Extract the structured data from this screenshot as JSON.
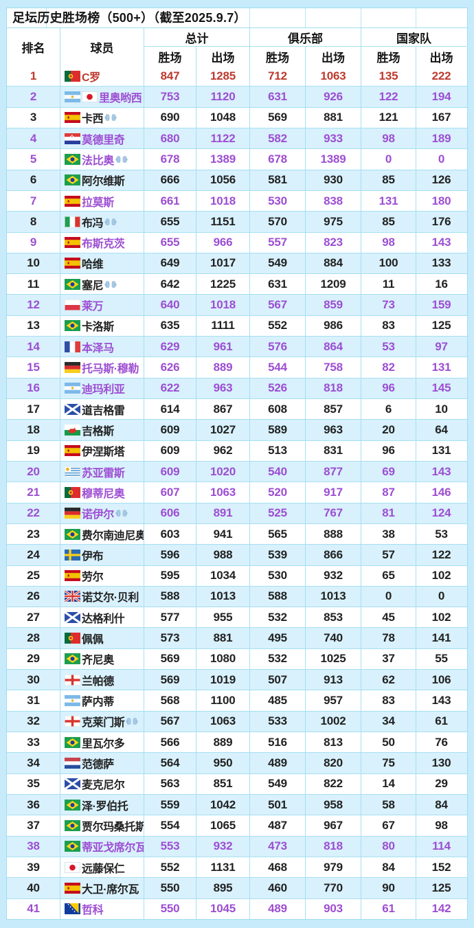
{
  "title": "足坛历史胜场榜（500+）（截至2025.9.7）",
  "header": {
    "rank": "排名",
    "player": "球员",
    "groups": [
      "总计",
      "俱乐部",
      "国家队"
    ],
    "wins": "胜场",
    "apps": "出场"
  },
  "icons": {
    "goalkeeper": "gloves-icon"
  },
  "colors": {
    "page_bg": "#c7ebfa",
    "row_white": "#ffffff",
    "row_blue": "#d8f1fd",
    "border": "#a6dff2",
    "status": {
      "top": "#bd392e",
      "active": "#9d4ed2",
      "retired": "#222222"
    }
  },
  "stat_keys": [
    "total-wins",
    "total-apps",
    "club-wins",
    "club-apps",
    "nt-wins",
    "nt-apps"
  ],
  "chart_data": {
    "type": "table",
    "title": "足坛历史胜场榜（500+）（截至2025.9.7）",
    "columns": [
      "排名",
      "球员",
      "总计胜场",
      "总计出场",
      "俱乐部胜场",
      "俱乐部出场",
      "国家队胜场",
      "国家队出场"
    ],
    "note_colors": "red=rank1, purple=active players, black=retired; goalkeeper marked with gloves icon"
  },
  "rows": [
    {
      "rank": 1,
      "name": "C罗",
      "flags": [
        "portugal"
      ],
      "gk": false,
      "status": "top",
      "stats": [
        847,
        1285,
        712,
        1063,
        135,
        222
      ]
    },
    {
      "rank": 2,
      "name": "里奥哟西",
      "flags": [
        "argentina",
        "japan"
      ],
      "gk": false,
      "status": "active",
      "stats": [
        753,
        1120,
        631,
        926,
        122,
        194
      ]
    },
    {
      "rank": 3,
      "name": "卡西",
      "flags": [
        "spain"
      ],
      "gk": true,
      "status": "retired",
      "stats": [
        690,
        1048,
        569,
        881,
        121,
        167
      ]
    },
    {
      "rank": 4,
      "name": "莫德里奇",
      "flags": [
        "croatia"
      ],
      "gk": false,
      "status": "active",
      "stats": [
        680,
        1122,
        582,
        933,
        98,
        189
      ]
    },
    {
      "rank": 5,
      "name": "法比奥",
      "flags": [
        "brazil"
      ],
      "gk": true,
      "status": "active",
      "stats": [
        678,
        1389,
        678,
        1389,
        0,
        0
      ]
    },
    {
      "rank": 6,
      "name": "阿尔维斯",
      "flags": [
        "brazil"
      ],
      "gk": false,
      "status": "retired",
      "stats": [
        666,
        1056,
        581,
        930,
        85,
        126
      ]
    },
    {
      "rank": 7,
      "name": "拉莫斯",
      "flags": [
        "spain"
      ],
      "gk": false,
      "status": "active",
      "stats": [
        661,
        1018,
        530,
        838,
        131,
        180
      ]
    },
    {
      "rank": 8,
      "name": "布冯",
      "flags": [
        "italy"
      ],
      "gk": true,
      "status": "retired",
      "stats": [
        655,
        1151,
        570,
        975,
        85,
        176
      ]
    },
    {
      "rank": 9,
      "name": "布斯克茨",
      "flags": [
        "spain"
      ],
      "gk": false,
      "status": "active",
      "stats": [
        655,
        966,
        557,
        823,
        98,
        143
      ]
    },
    {
      "rank": 10,
      "name": "哈维",
      "flags": [
        "spain"
      ],
      "gk": false,
      "status": "retired",
      "stats": [
        649,
        1017,
        549,
        884,
        100,
        133
      ]
    },
    {
      "rank": 11,
      "name": "塞尼",
      "flags": [
        "brazil"
      ],
      "gk": true,
      "status": "retired",
      "stats": [
        642,
        1225,
        631,
        1209,
        11,
        16
      ]
    },
    {
      "rank": 12,
      "name": "莱万",
      "flags": [
        "poland"
      ],
      "gk": false,
      "status": "active",
      "stats": [
        640,
        1018,
        567,
        859,
        73,
        159
      ]
    },
    {
      "rank": 13,
      "name": "卡洛斯",
      "flags": [
        "brazil"
      ],
      "gk": false,
      "status": "retired",
      "stats": [
        635,
        1111,
        552,
        986,
        83,
        125
      ]
    },
    {
      "rank": 14,
      "name": "本泽马",
      "flags": [
        "france"
      ],
      "gk": false,
      "status": "active",
      "stats": [
        629,
        961,
        576,
        864,
        53,
        97
      ]
    },
    {
      "rank": 15,
      "name": "托马斯·穆勒",
      "flags": [
        "germany"
      ],
      "gk": false,
      "status": "active",
      "stats": [
        626,
        889,
        544,
        758,
        82,
        131
      ]
    },
    {
      "rank": 16,
      "name": "迪玛利亚",
      "flags": [
        "argentina"
      ],
      "gk": false,
      "status": "active",
      "stats": [
        622,
        963,
        526,
        818,
        96,
        145
      ]
    },
    {
      "rank": 17,
      "name": "道吉格雷",
      "flags": [
        "scotland"
      ],
      "gk": false,
      "status": "retired",
      "stats": [
        614,
        867,
        608,
        857,
        6,
        10
      ]
    },
    {
      "rank": 18,
      "name": "吉格斯",
      "flags": [
        "wales"
      ],
      "gk": false,
      "status": "retired",
      "stats": [
        609,
        1027,
        589,
        963,
        20,
        64
      ]
    },
    {
      "rank": 19,
      "name": "伊涅斯塔",
      "flags": [
        "spain"
      ],
      "gk": false,
      "status": "retired",
      "stats": [
        609,
        962,
        513,
        831,
        96,
        131
      ]
    },
    {
      "rank": 20,
      "name": "苏亚雷斯",
      "flags": [
        "uruguay"
      ],
      "gk": false,
      "status": "active",
      "stats": [
        609,
        1020,
        540,
        877,
        69,
        143
      ]
    },
    {
      "rank": 21,
      "name": "穆蒂尼奥",
      "flags": [
        "portugal"
      ],
      "gk": false,
      "status": "active",
      "stats": [
        607,
        1063,
        520,
        917,
        87,
        146
      ]
    },
    {
      "rank": 22,
      "name": "诺伊尔",
      "flags": [
        "germany"
      ],
      "gk": true,
      "status": "active",
      "stats": [
        606,
        891,
        525,
        767,
        81,
        124
      ]
    },
    {
      "rank": 23,
      "name": "费尔南迪尼奥",
      "flags": [
        "brazil"
      ],
      "gk": false,
      "status": "retired",
      "stats": [
        603,
        941,
        565,
        888,
        38,
        53
      ]
    },
    {
      "rank": 24,
      "name": "伊布",
      "flags": [
        "sweden"
      ],
      "gk": false,
      "status": "retired",
      "stats": [
        596,
        988,
        539,
        866,
        57,
        122
      ]
    },
    {
      "rank": 25,
      "name": "劳尔",
      "flags": [
        "spain"
      ],
      "gk": false,
      "status": "retired",
      "stats": [
        595,
        1034,
        530,
        932,
        65,
        102
      ]
    },
    {
      "rank": 26,
      "name": "诺艾尔·贝利",
      "flags": [
        "uk"
      ],
      "gk": false,
      "status": "retired",
      "stats": [
        588,
        1013,
        588,
        1013,
        0,
        0
      ]
    },
    {
      "rank": 27,
      "name": "达格利什",
      "flags": [
        "scotland"
      ],
      "gk": false,
      "status": "retired",
      "stats": [
        577,
        955,
        532,
        853,
        45,
        102
      ]
    },
    {
      "rank": 28,
      "name": "佩佩",
      "flags": [
        "portugal"
      ],
      "gk": false,
      "status": "retired",
      "stats": [
        573,
        881,
        495,
        740,
        78,
        141
      ]
    },
    {
      "rank": 29,
      "name": "齐尼奥",
      "flags": [
        "brazil"
      ],
      "gk": false,
      "status": "retired",
      "stats": [
        569,
        1080,
        532,
        1025,
        37,
        55
      ]
    },
    {
      "rank": 30,
      "name": "兰帕德",
      "flags": [
        "england"
      ],
      "gk": false,
      "status": "retired",
      "stats": [
        569,
        1019,
        507,
        913,
        62,
        106
      ]
    },
    {
      "rank": 31,
      "name": "萨内蒂",
      "flags": [
        "argentina"
      ],
      "gk": false,
      "status": "retired",
      "stats": [
        568,
        1100,
        485,
        957,
        83,
        143
      ]
    },
    {
      "rank": 32,
      "name": "克莱门斯",
      "flags": [
        "england"
      ],
      "gk": true,
      "status": "retired",
      "stats": [
        567,
        1063,
        533,
        1002,
        34,
        61
      ]
    },
    {
      "rank": 33,
      "name": "里瓦尔多",
      "flags": [
        "brazil"
      ],
      "gk": false,
      "status": "retired",
      "stats": [
        566,
        889,
        516,
        813,
        50,
        76
      ]
    },
    {
      "rank": 34,
      "name": "范德萨",
      "flags": [
        "netherlands"
      ],
      "gk": false,
      "status": "retired",
      "stats": [
        564,
        950,
        489,
        820,
        75,
        130
      ]
    },
    {
      "rank": 35,
      "name": "麦克尼尔",
      "flags": [
        "scotland"
      ],
      "gk": false,
      "status": "retired",
      "stats": [
        563,
        851,
        549,
        822,
        14,
        29
      ]
    },
    {
      "rank": 36,
      "name": "泽·罗伯托",
      "flags": [
        "brazil"
      ],
      "gk": false,
      "status": "retired",
      "stats": [
        559,
        1042,
        501,
        958,
        58,
        84
      ]
    },
    {
      "rank": 37,
      "name": "贾尔玛桑托斯",
      "flags": [
        "brazil"
      ],
      "gk": false,
      "status": "retired",
      "stats": [
        554,
        1065,
        487,
        967,
        67,
        98
      ]
    },
    {
      "rank": 38,
      "name": "蒂亚戈席尔瓦",
      "flags": [
        "brazil"
      ],
      "gk": false,
      "status": "active",
      "stats": [
        553,
        932,
        473,
        818,
        80,
        114
      ]
    },
    {
      "rank": 39,
      "name": "远藤保仁",
      "flags": [
        "japan"
      ],
      "gk": false,
      "status": "retired",
      "stats": [
        552,
        1131,
        468,
        979,
        84,
        152
      ]
    },
    {
      "rank": 40,
      "name": "大卫·席尔瓦",
      "flags": [
        "spain"
      ],
      "gk": false,
      "status": "retired",
      "stats": [
        550,
        895,
        460,
        770,
        90,
        125
      ]
    },
    {
      "rank": 41,
      "name": "哲科",
      "flags": [
        "bosnia"
      ],
      "gk": false,
      "status": "active",
      "stats": [
        550,
        1045,
        489,
        903,
        61,
        142
      ]
    }
  ]
}
